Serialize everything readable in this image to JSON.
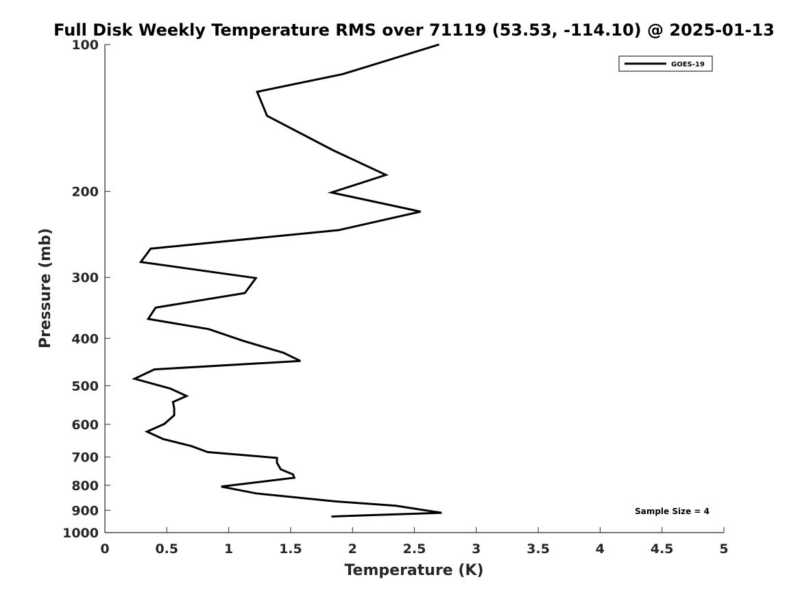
{
  "chart_data": {
    "type": "line",
    "title": "Full Disk Weekly Temperature RMS over 71119 (53.53, -114.10) @ 2025-01-13",
    "xlabel": "Temperature (K)",
    "ylabel": "Pressure (mb)",
    "xlim": [
      0,
      5
    ],
    "ylim": [
      100,
      1000
    ],
    "y_scale": "log",
    "y_reversed": true,
    "grid": false,
    "x_ticks": [
      0,
      0.5,
      1,
      1.5,
      2,
      2.5,
      3,
      3.5,
      4,
      4.5,
      5
    ],
    "x_tick_labels": [
      "0",
      "0.5",
      "1",
      "1.5",
      "2",
      "2.5",
      "3",
      "3.5",
      "4",
      "4.5",
      "5"
    ],
    "y_ticks": [
      100,
      200,
      300,
      400,
      500,
      600,
      700,
      800,
      900,
      1000
    ],
    "y_tick_labels": [
      "100",
      "200",
      "300",
      "400",
      "500",
      "600",
      "700",
      "800",
      "900",
      "1000"
    ],
    "legend_position": "top-right",
    "annotation": "Sample Size = 4",
    "series": [
      {
        "name": "GOES-19",
        "color": "#000000",
        "x": [
          2.7,
          1.92,
          1.23,
          1.31,
          1.85,
          2.27,
          1.83,
          2.55,
          1.89,
          0.37,
          0.29,
          1.22,
          1.13,
          0.41,
          0.35,
          0.84,
          1.12,
          1.44,
          1.58,
          0.4,
          0.24,
          0.53,
          0.66,
          0.55,
          0.56,
          0.56,
          0.48,
          0.34,
          0.47,
          0.7,
          0.83,
          1.39,
          1.39,
          1.42,
          1.52,
          1.53,
          0.94,
          1.22,
          1.86,
          2.35,
          2.72,
          1.83
        ],
        "y": [
          100,
          115,
          125,
          140,
          165,
          185,
          201,
          220,
          240,
          262,
          279,
          301,
          323,
          346,
          365,
          383,
          405,
          428,
          445,
          463,
          484,
          507,
          525,
          540,
          556,
          575,
          599,
          621,
          643,
          665,
          684,
          703,
          719,
          742,
          760,
          772,
          805,
          831,
          863,
          881,
          911,
          927
        ]
      }
    ]
  }
}
